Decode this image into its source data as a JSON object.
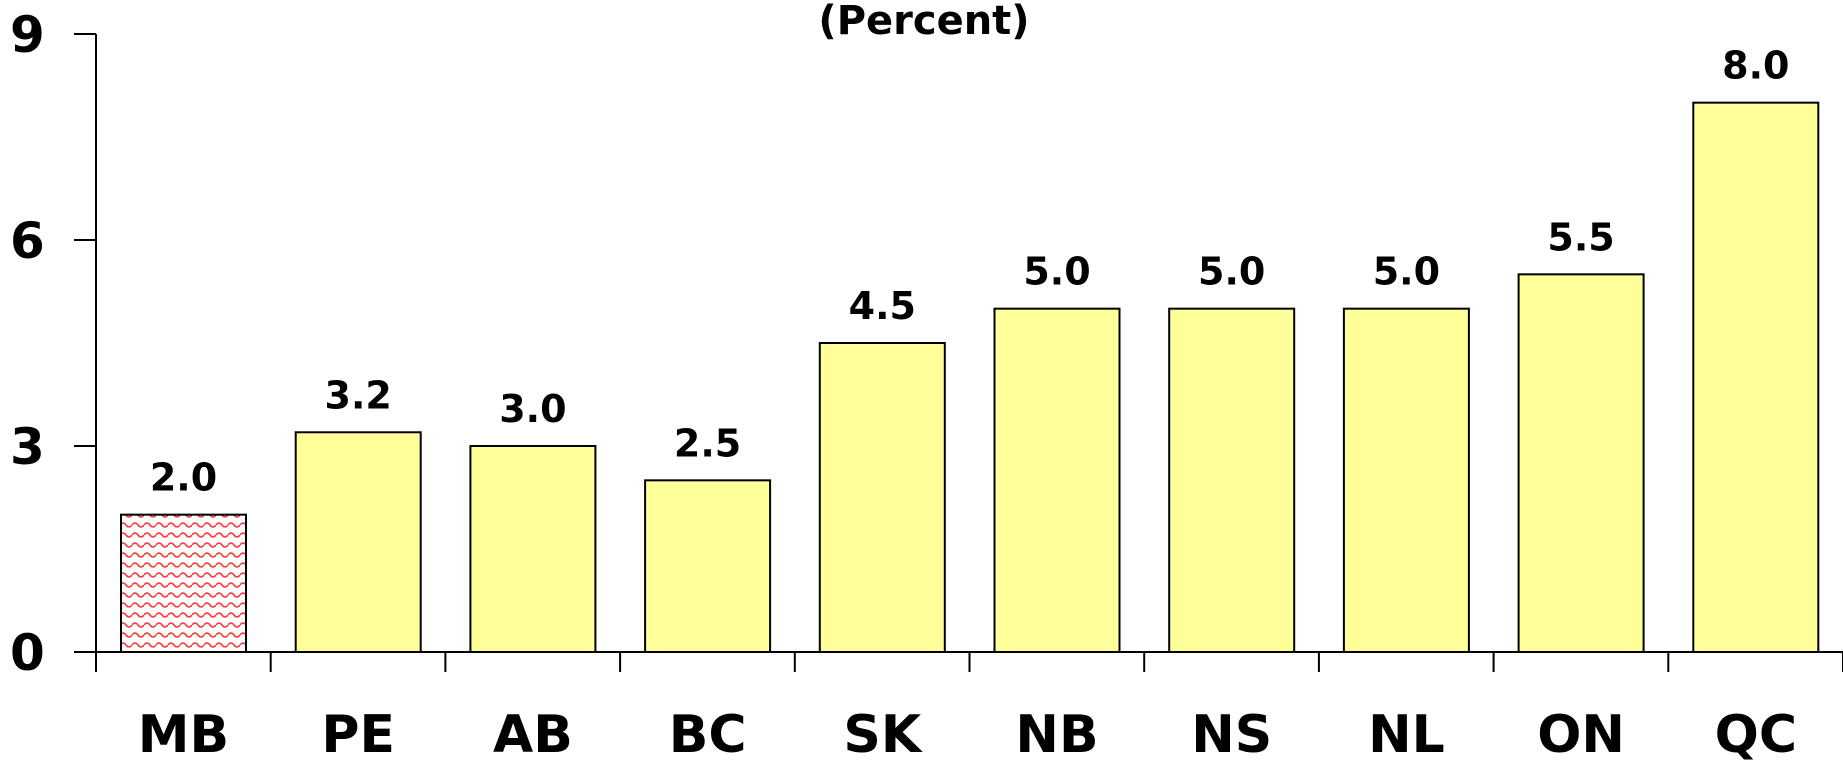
{
  "chart_data": {
    "type": "bar",
    "title": "(Percent)",
    "categories": [
      "MB",
      "PE",
      "AB",
      "BC",
      "SK",
      "NB",
      "NS",
      "NL",
      "ON",
      "QC"
    ],
    "values": [
      2.0,
      3.2,
      3.0,
      2.5,
      4.5,
      5.0,
      5.0,
      5.0,
      5.5,
      8.0
    ],
    "data_labels": [
      "2.0",
      "3.2",
      "3.0",
      "2.5",
      "4.5",
      "5.0",
      "5.0",
      "5.0",
      "5.5",
      "8.0"
    ],
    "yticks": [
      "0",
      "3",
      "6",
      "9"
    ],
    "ylim": [
      0,
      9
    ],
    "grid": false,
    "colors": {
      "default_bar": "#ffff99",
      "highlight_bar_pattern": "#ff3333",
      "bar_edge": "#000000"
    },
    "highlight_category": "MB"
  }
}
